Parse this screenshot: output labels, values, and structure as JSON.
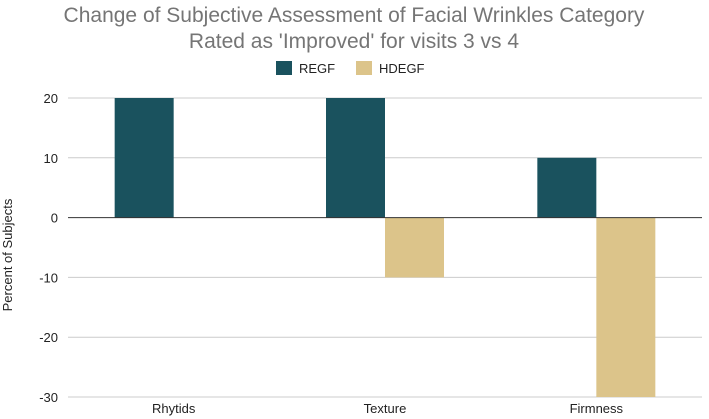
{
  "chart_data": {
    "type": "bar",
    "title_lines": [
      "Change of Subjective Assessment of Facial Wrinkles Category",
      "Rated as 'Improved' for visits 3 vs 4"
    ],
    "xlabel": "",
    "ylabel": "Percent of Subjects",
    "categories": [
      "Rhytids",
      "Texture",
      "Firmness"
    ],
    "series": [
      {
        "name": "REGF",
        "values": [
          20,
          20,
          10
        ],
        "color": "#1a525e"
      },
      {
        "name": "HDEGF",
        "values": [
          0,
          -10,
          -30
        ],
        "color": "#dcc48a"
      }
    ],
    "ylim": [
      -30,
      20
    ],
    "yticks": [
      20,
      10,
      0,
      -10,
      -20,
      -30
    ],
    "ytick_labels": [
      "20",
      "10",
      "0",
      "-10",
      "-20",
      "-30"
    ],
    "grid": true,
    "legend_position": "top"
  }
}
